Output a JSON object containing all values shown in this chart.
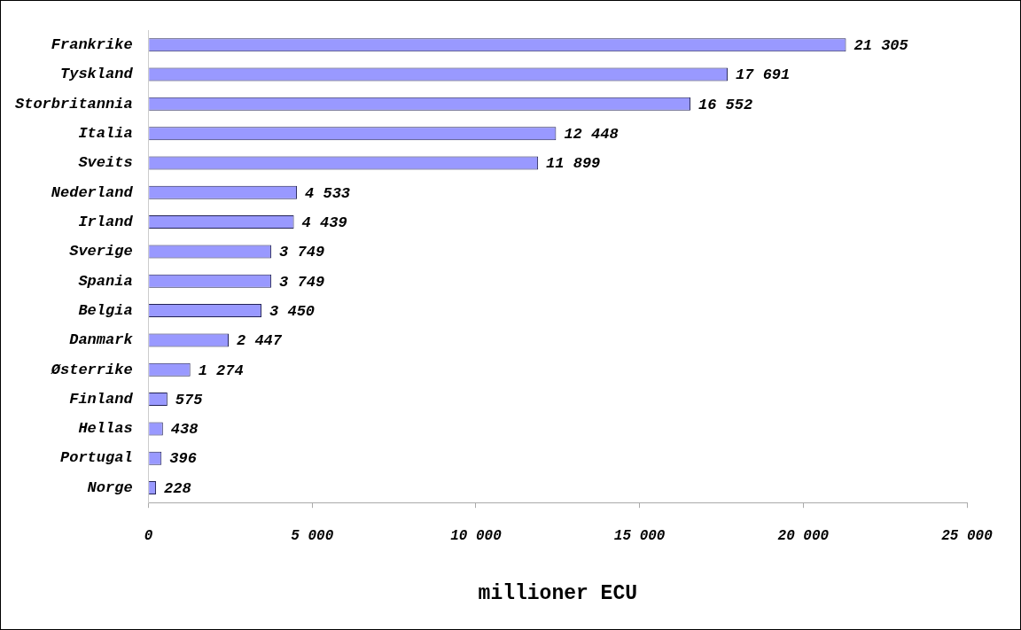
{
  "chart_data": {
    "type": "bar",
    "orientation": "horizontal",
    "xlabel": "millioner ECU",
    "categories": [
      "Frankrike",
      "Tyskland",
      "Storbritannia",
      "Italia",
      "Sveits",
      "Nederland",
      "Irland",
      "Sverige",
      "Spania",
      "Belgia",
      "Danmark",
      "Østerrike",
      "Finland",
      "Hellas",
      "Portugal",
      "Norge"
    ],
    "values": [
      21305,
      17691,
      16552,
      12448,
      11899,
      4533,
      4439,
      3749,
      3749,
      3450,
      2447,
      1274,
      575,
      438,
      396,
      228
    ],
    "value_labels": [
      "21 305",
      "17 691",
      "16 552",
      "12 448",
      "11 899",
      "4 533",
      "4 439",
      "3 749",
      "3 749",
      "3 450",
      "2 447",
      "1 274",
      "575",
      "438",
      "396",
      "228"
    ],
    "color": "#9999ff",
    "xlim": [
      0,
      25000
    ],
    "xticks": [
      0,
      {
        "value": 5000,
        "label": "5 000"
      },
      {
        "value": 10000,
        "label": "10 000"
      },
      {
        "value": 15000,
        "label": "15 000"
      },
      {
        "value": 20000,
        "label": "20 000"
      },
      {
        "value": 25000,
        "label": "25 000"
      }
    ],
    "grid": false,
    "legend": false
  }
}
